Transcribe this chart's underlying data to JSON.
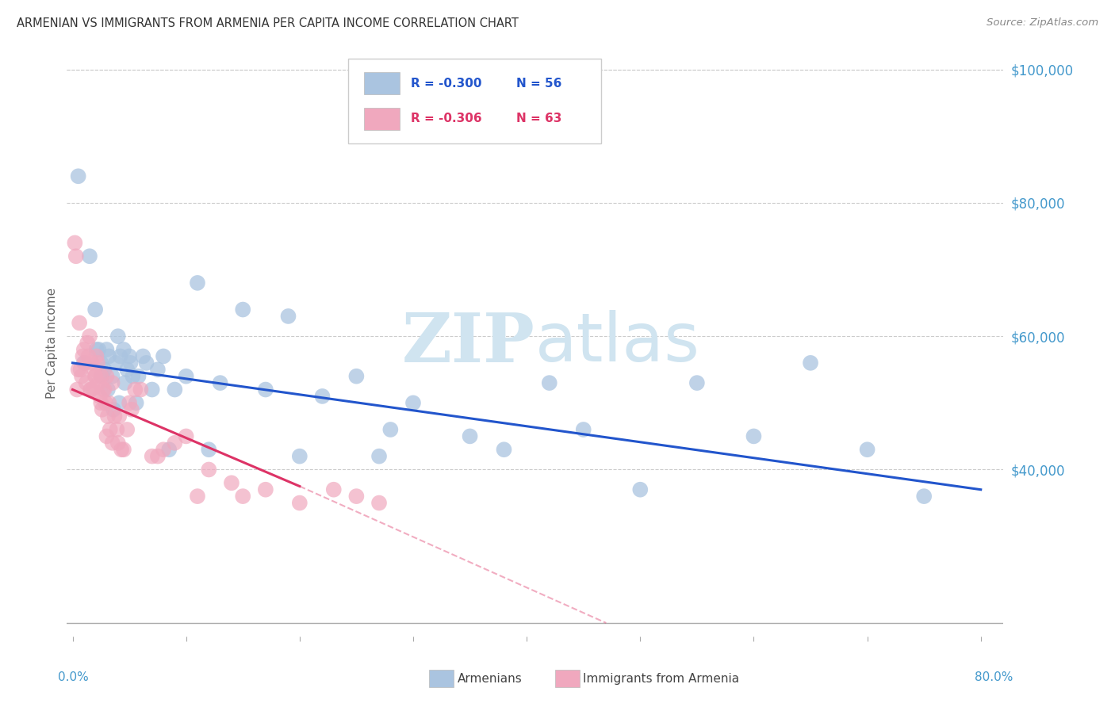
{
  "title": "ARMENIAN VS IMMIGRANTS FROM ARMENIA PER CAPITA INCOME CORRELATION CHART",
  "source": "Source: ZipAtlas.com",
  "ylabel": "Per Capita Income",
  "yticks": [
    40000,
    60000,
    80000,
    100000
  ],
  "ytick_labels": [
    "$40,000",
    "$60,000",
    "$80,000",
    "$100,000"
  ],
  "legend_entries": [
    {
      "label": "Armenians",
      "color": "#aac4e0",
      "R": "-0.300",
      "N": "56"
    },
    {
      "label": "Immigrants from Armenia",
      "color": "#f0a8be",
      "R": "-0.306",
      "N": "63"
    }
  ],
  "blue_scatter_x": [
    0.5,
    1.0,
    1.5,
    2.0,
    2.3,
    2.5,
    2.8,
    3.0,
    3.2,
    3.5,
    3.8,
    4.0,
    4.2,
    4.5,
    4.8,
    5.0,
    5.3,
    5.8,
    6.2,
    7.0,
    7.5,
    8.0,
    9.0,
    10.0,
    11.0,
    13.0,
    15.0,
    17.0,
    19.0,
    22.0,
    25.0,
    28.0,
    30.0,
    35.0,
    38.0,
    42.0,
    45.0,
    50.0,
    55.0,
    65.0,
    70.0,
    75.0,
    2.1,
    2.6,
    3.1,
    3.6,
    4.1,
    4.6,
    5.1,
    5.6,
    6.5,
    8.5,
    12.0,
    20.0,
    27.0,
    60.0
  ],
  "blue_scatter_y": [
    84000,
    56000,
    72000,
    64000,
    58000,
    56000,
    55000,
    58000,
    57000,
    54000,
    56000,
    60000,
    57000,
    58000,
    55000,
    57000,
    54000,
    54000,
    57000,
    52000,
    55000,
    57000,
    52000,
    54000,
    68000,
    53000,
    64000,
    52000,
    63000,
    51000,
    54000,
    46000,
    50000,
    45000,
    43000,
    53000,
    46000,
    37000,
    53000,
    56000,
    43000,
    36000,
    58000,
    54000,
    52000,
    49000,
    50000,
    53000,
    56000,
    50000,
    56000,
    43000,
    43000,
    42000,
    42000,
    45000
  ],
  "pink_scatter_x": [
    0.2,
    0.3,
    0.5,
    0.6,
    0.8,
    1.0,
    1.1,
    1.2,
    1.4,
    1.5,
    1.6,
    1.7,
    1.8,
    1.9,
    2.0,
    2.1,
    2.2,
    2.3,
    2.4,
    2.5,
    2.6,
    2.7,
    2.8,
    2.9,
    3.0,
    3.1,
    3.2,
    3.3,
    3.5,
    3.7,
    3.9,
    4.1,
    4.3,
    4.5,
    5.0,
    5.5,
    6.0,
    7.0,
    8.0,
    9.0,
    10.0,
    12.0,
    14.0,
    17.0,
    20.0,
    23.0,
    25.0,
    0.4,
    0.7,
    0.9,
    1.3,
    1.6,
    2.0,
    2.5,
    3.0,
    3.5,
    4.0,
    4.8,
    5.2,
    7.5,
    11.0,
    15.0,
    27.0
  ],
  "pink_scatter_y": [
    74000,
    72000,
    55000,
    62000,
    54000,
    58000,
    56000,
    53000,
    57000,
    60000,
    52000,
    56000,
    52000,
    55000,
    54000,
    57000,
    56000,
    53000,
    51000,
    54000,
    49000,
    52000,
    52000,
    50000,
    54000,
    48000,
    50000,
    46000,
    53000,
    48000,
    46000,
    48000,
    43000,
    43000,
    50000,
    52000,
    52000,
    42000,
    43000,
    44000,
    45000,
    40000,
    38000,
    37000,
    35000,
    37000,
    36000,
    52000,
    55000,
    57000,
    59000,
    52000,
    54000,
    50000,
    45000,
    44000,
    44000,
    46000,
    49000,
    42000,
    36000,
    36000,
    35000
  ],
  "blue_line_x0": 0.0,
  "blue_line_x1": 80.0,
  "blue_line_y0": 56000,
  "blue_line_y1": 37000,
  "pink_line_x0": 0.0,
  "pink_line_x1": 20.0,
  "pink_line_y0": 52000,
  "pink_line_y1": 37500,
  "pink_dashed_x0": 20.0,
  "pink_dashed_x1": 47.0,
  "pink_dashed_y0": 37500,
  "pink_dashed_y1": 17000,
  "blue_color": "#aac4e0",
  "pink_color": "#f0a8be",
  "blue_line_color": "#2255cc",
  "pink_line_color": "#dd3366",
  "watermark_zip": "ZIP",
  "watermark_atlas": "atlas",
  "watermark_color": "#d0e4f0",
  "background_color": "#ffffff",
  "ymin": 15000,
  "ymax": 103000,
  "xmin": -0.5,
  "xmax": 82.0,
  "legend_text_color_blue": "#2255cc",
  "legend_text_color_pink": "#dd3366",
  "axis_color": "#aaaaaa",
  "tick_label_color": "#4499cc",
  "title_color": "#333333",
  "source_color": "#888888",
  "ylabel_color": "#666666",
  "bottom_legend_color": "#444444"
}
